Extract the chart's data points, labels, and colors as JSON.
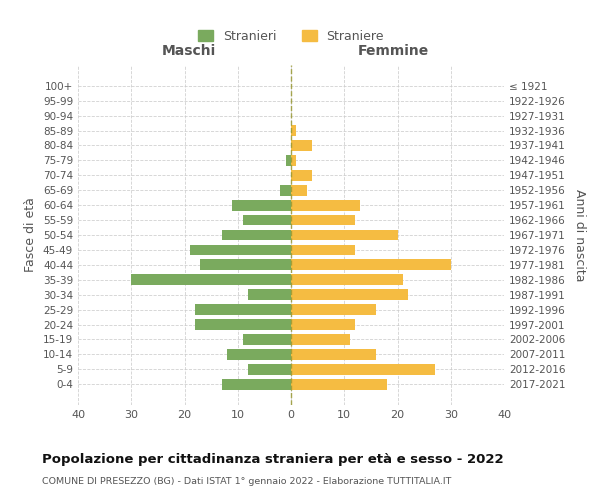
{
  "age_groups": [
    "100+",
    "95-99",
    "90-94",
    "85-89",
    "80-84",
    "75-79",
    "70-74",
    "65-69",
    "60-64",
    "55-59",
    "50-54",
    "45-49",
    "40-44",
    "35-39",
    "30-34",
    "25-29",
    "20-24",
    "15-19",
    "10-14",
    "5-9",
    "0-4"
  ],
  "birth_years": [
    "≤ 1921",
    "1922-1926",
    "1927-1931",
    "1932-1936",
    "1937-1941",
    "1942-1946",
    "1947-1951",
    "1952-1956",
    "1957-1961",
    "1962-1966",
    "1967-1971",
    "1972-1976",
    "1977-1981",
    "1982-1986",
    "1987-1991",
    "1992-1996",
    "1997-2001",
    "2002-2006",
    "2007-2011",
    "2012-2016",
    "2017-2021"
  ],
  "males": [
    0,
    0,
    0,
    0,
    0,
    1,
    0,
    2,
    11,
    9,
    13,
    19,
    17,
    30,
    8,
    18,
    18,
    9,
    12,
    8,
    13
  ],
  "females": [
    0,
    0,
    0,
    1,
    4,
    1,
    4,
    3,
    13,
    12,
    20,
    12,
    30,
    21,
    22,
    16,
    12,
    11,
    16,
    27,
    18
  ],
  "male_color": "#7aaa5e",
  "female_color": "#f5bc42",
  "title": "Popolazione per cittadinanza straniera per età e sesso - 2022",
  "subtitle": "COMUNE DI PRESEZZO (BG) - Dati ISTAT 1° gennaio 2022 - Elaborazione TUTTITALIA.IT",
  "ylabel_left": "Fasce di età",
  "ylabel_right": "Anni di nascita",
  "xlabel_left": "Maschi",
  "xlabel_right": "Femmine",
  "legend_stranieri": "Stranieri",
  "legend_straniere": "Straniere",
  "xlim": 40,
  "background_color": "#ffffff",
  "grid_color": "#cccccc"
}
